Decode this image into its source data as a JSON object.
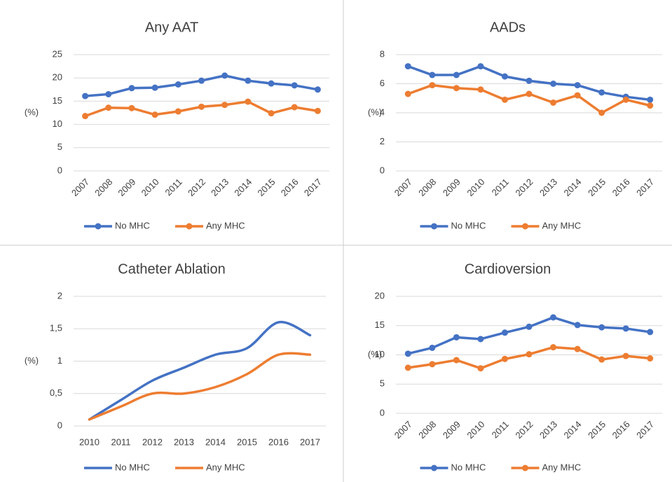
{
  "chart_data": [
    {
      "type": "line",
      "title": "Any AAT",
      "y_label": "(%)",
      "categories": [
        "2007",
        "2008",
        "2009",
        "2010",
        "2011",
        "2012",
        "2013",
        "2014",
        "2015",
        "2016",
        "2017"
      ],
      "series": [
        {
          "name": "No MHC",
          "color": "#4472c4",
          "values": [
            16.1,
            16.5,
            17.8,
            17.9,
            18.6,
            19.4,
            20.5,
            19.4,
            18.8,
            18.4,
            17.5
          ]
        },
        {
          "name": "Any MHC",
          "color": "#ed7d31",
          "values": [
            11.8,
            13.6,
            13.5,
            12.1,
            12.8,
            13.8,
            14.2,
            14.9,
            12.4,
            13.7,
            12.9
          ]
        }
      ],
      "ylim": [
        0,
        25
      ],
      "yticks": [
        0,
        5,
        10,
        15,
        20,
        25
      ],
      "grid": true,
      "markers": true,
      "smooth": false,
      "legend": "bottom"
    },
    {
      "type": "line",
      "title": "AADs",
      "y_label": "(%)",
      "categories": [
        "2007",
        "2008",
        "2009",
        "2010",
        "2011",
        "2012",
        "2013",
        "2014",
        "2015",
        "2016",
        "2017"
      ],
      "series": [
        {
          "name": "No MHC",
          "color": "#4472c4",
          "values": [
            7.2,
            6.6,
            6.6,
            7.2,
            6.5,
            6.2,
            6.0,
            5.9,
            5.4,
            5.1,
            4.9
          ]
        },
        {
          "name": "Any MHC",
          "color": "#ed7d31",
          "values": [
            5.3,
            5.9,
            5.7,
            5.6,
            4.9,
            5.3,
            4.7,
            5.2,
            4.0,
            4.9,
            4.5
          ]
        }
      ],
      "ylim": [
        0,
        8
      ],
      "yticks": [
        0,
        2,
        4,
        6,
        8
      ],
      "grid": true,
      "markers": true,
      "smooth": false,
      "legend": "bottom"
    },
    {
      "type": "line",
      "title": "Catheter Ablation",
      "y_label": "(%)",
      "categories": [
        "2010",
        "2011",
        "2012",
        "2013",
        "2014",
        "2015",
        "2016",
        "2017"
      ],
      "series": [
        {
          "name": "No MHC",
          "color": "#4472c4",
          "values": [
            0.1,
            0.4,
            0.7,
            0.9,
            1.1,
            1.2,
            1.6,
            1.4
          ]
        },
        {
          "name": "Any MHC",
          "color": "#ed7d31",
          "values": [
            0.1,
            0.3,
            0.5,
            0.5,
            0.6,
            0.8,
            1.1,
            1.1
          ]
        }
      ],
      "ylim": [
        0,
        2
      ],
      "yticks": [
        0,
        {
          "value": 0.5,
          "label": "0,5"
        },
        1,
        {
          "value": 1.5,
          "label": "1,5"
        },
        2
      ],
      "grid": true,
      "markers": false,
      "smooth": true,
      "legend": "bottom"
    },
    {
      "type": "line",
      "title": "Cardioversion",
      "y_label": "(%)",
      "categories": [
        "2007",
        "2008",
        "2009",
        "2010",
        "2011",
        "2012",
        "2013",
        "2014",
        "2015",
        "2016",
        "2017"
      ],
      "series": [
        {
          "name": "No MHC",
          "color": "#4472c4",
          "values": [
            10.2,
            11.2,
            13.0,
            12.7,
            13.8,
            14.8,
            16.4,
            15.1,
            14.7,
            14.5,
            13.9
          ]
        },
        {
          "name": "Any MHC",
          "color": "#ed7d31",
          "values": [
            7.8,
            8.4,
            9.1,
            7.7,
            9.3,
            10.1,
            11.3,
            11.0,
            9.2,
            9.8,
            9.4
          ]
        }
      ],
      "ylim": [
        0,
        20
      ],
      "yticks": [
        0,
        5,
        10,
        15,
        20
      ],
      "grid": true,
      "markers": true,
      "smooth": false,
      "legend": "bottom"
    }
  ]
}
